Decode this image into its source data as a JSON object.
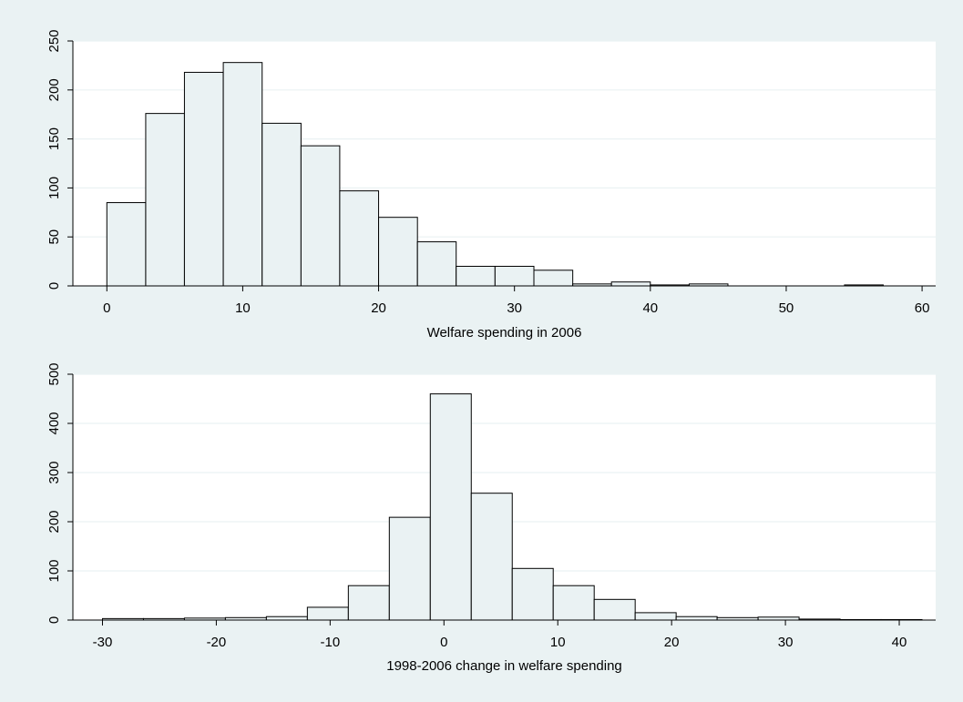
{
  "chart_data": [
    {
      "type": "bar",
      "subtype": "histogram",
      "xlabel": "Welfare spending in 2006",
      "ylabel": "",
      "xlim": [
        -2.5,
        61
      ],
      "ylim": [
        0,
        250
      ],
      "x_ticks": [
        0,
        10,
        20,
        30,
        40,
        50,
        60
      ],
      "y_ticks": [
        0,
        50,
        100,
        150,
        200,
        250
      ],
      "grid": true,
      "colors": {
        "bar_fill": "#eaf2f3",
        "bar_edge": "#000000",
        "plot_bg": "#ffffff",
        "grid": "#eaf2f3"
      },
      "bins": [
        {
          "x0": 0.0,
          "x1": 2.86,
          "count": 85
        },
        {
          "x0": 2.86,
          "x1": 5.71,
          "count": 176
        },
        {
          "x0": 5.71,
          "x1": 8.57,
          "count": 218
        },
        {
          "x0": 8.57,
          "x1": 11.43,
          "count": 228
        },
        {
          "x0": 11.43,
          "x1": 14.29,
          "count": 166
        },
        {
          "x0": 14.29,
          "x1": 17.14,
          "count": 143
        },
        {
          "x0": 17.14,
          "x1": 20.0,
          "count": 97
        },
        {
          "x0": 20.0,
          "x1": 22.86,
          "count": 70
        },
        {
          "x0": 22.86,
          "x1": 25.71,
          "count": 45
        },
        {
          "x0": 25.71,
          "x1": 28.57,
          "count": 20
        },
        {
          "x0": 28.57,
          "x1": 31.43,
          "count": 20
        },
        {
          "x0": 31.43,
          "x1": 34.29,
          "count": 16
        },
        {
          "x0": 34.29,
          "x1": 37.14,
          "count": 2
        },
        {
          "x0": 37.14,
          "x1": 40.0,
          "count": 4
        },
        {
          "x0": 40.0,
          "x1": 42.86,
          "count": 1
        },
        {
          "x0": 42.86,
          "x1": 45.71,
          "count": 2
        },
        {
          "x0": 45.71,
          "x1": 48.57,
          "count": 0
        },
        {
          "x0": 48.57,
          "x1": 51.43,
          "count": 0
        },
        {
          "x0": 51.43,
          "x1": 54.29,
          "count": 0
        },
        {
          "x0": 54.29,
          "x1": 57.14,
          "count": 1
        },
        {
          "x0": 57.14,
          "x1": 60.0,
          "count": 0
        }
      ]
    },
    {
      "type": "bar",
      "subtype": "histogram",
      "xlabel": "1998-2006 change in welfare spending",
      "ylabel": "",
      "xlim": [
        -32.6,
        43.2
      ],
      "ylim": [
        0,
        500
      ],
      "x_ticks": [
        -30,
        -20,
        -10,
        0,
        10,
        20,
        30,
        40
      ],
      "y_ticks": [
        0,
        100,
        200,
        300,
        400,
        500
      ],
      "grid": true,
      "colors": {
        "bar_fill": "#eaf2f3",
        "bar_edge": "#000000",
        "plot_bg": "#ffffff",
        "grid": "#eaf2f3"
      },
      "bins": [
        {
          "x0": -30.0,
          "x1": -26.4,
          "count": 3
        },
        {
          "x0": -26.4,
          "x1": -22.8,
          "count": 3
        },
        {
          "x0": -22.8,
          "x1": -19.2,
          "count": 4
        },
        {
          "x0": -19.2,
          "x1": -15.6,
          "count": 5
        },
        {
          "x0": -15.6,
          "x1": -12.0,
          "count": 7
        },
        {
          "x0": -12.0,
          "x1": -8.4,
          "count": 26
        },
        {
          "x0": -8.4,
          "x1": -4.8,
          "count": 70
        },
        {
          "x0": -4.8,
          "x1": -1.2,
          "count": 209
        },
        {
          "x0": -1.2,
          "x1": 2.4,
          "count": 460
        },
        {
          "x0": 2.4,
          "x1": 6.0,
          "count": 258
        },
        {
          "x0": 6.0,
          "x1": 9.6,
          "count": 105
        },
        {
          "x0": 9.6,
          "x1": 13.2,
          "count": 70
        },
        {
          "x0": 13.2,
          "x1": 16.8,
          "count": 42
        },
        {
          "x0": 16.8,
          "x1": 20.4,
          "count": 15
        },
        {
          "x0": 20.4,
          "x1": 24.0,
          "count": 7
        },
        {
          "x0": 24.0,
          "x1": 27.6,
          "count": 5
        },
        {
          "x0": 27.6,
          "x1": 31.2,
          "count": 6
        },
        {
          "x0": 31.2,
          "x1": 34.8,
          "count": 2
        },
        {
          "x0": 34.8,
          "x1": 38.4,
          "count": 1
        },
        {
          "x0": 38.4,
          "x1": 42.0,
          "count": 1
        }
      ]
    }
  ]
}
